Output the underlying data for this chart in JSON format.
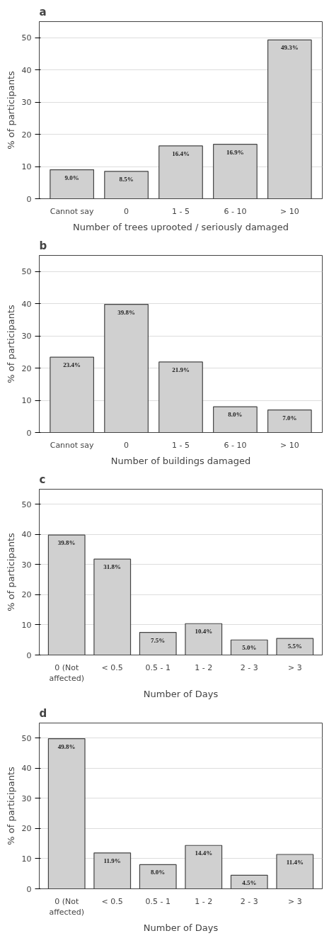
{
  "chart_data": [
    {
      "type": "bar",
      "title": "a",
      "xlabel": "Number of trees uprooted / seriously damaged",
      "ylabel": "% of participants",
      "categories": [
        "Cannot say",
        "0",
        "1 - 5",
        "6 - 10",
        "> 10"
      ],
      "values": [
        9.0,
        8.5,
        16.4,
        16.9,
        49.3
      ],
      "value_labels": [
        "9.0%",
        "8.5%",
        "16.4%",
        "16.9%",
        "49.3%"
      ],
      "color": "#d0d0d0",
      "ylim": [
        0,
        55
      ],
      "yticks": [
        0,
        10,
        20,
        30,
        40,
        50
      ],
      "grid": "y"
    },
    {
      "type": "bar",
      "title": "b",
      "xlabel": "Number of buildings damaged",
      "ylabel": "% of participants",
      "categories": [
        "Cannot say",
        "0",
        "1 - 5",
        "6 - 10",
        "> 10"
      ],
      "values": [
        23.4,
        39.8,
        21.9,
        8.0,
        7.0
      ],
      "value_labels": [
        "23.4%",
        "39.8%",
        "21.9%",
        "8.0%",
        "7.0%"
      ],
      "color": "#d0d0d0",
      "ylim": [
        0,
        55
      ],
      "yticks": [
        0,
        10,
        20,
        30,
        40,
        50
      ],
      "grid": "y"
    },
    {
      "type": "bar",
      "title": "c",
      "xlabel": "Number of Days",
      "ylabel": "% of participants",
      "categories": [
        "0 (Not\naffected)",
        "< 0.5",
        "0.5 - 1",
        "1 - 2",
        "2 - 3",
        "> 3"
      ],
      "values": [
        39.8,
        31.8,
        7.5,
        10.4,
        5.0,
        5.5
      ],
      "value_labels": [
        "39.8%",
        "31.8%",
        "7.5%",
        "10.4%",
        "5.0%",
        "5.5%"
      ],
      "color": "#d0d0d0",
      "ylim": [
        0,
        55
      ],
      "yticks": [
        0,
        10,
        20,
        30,
        40,
        50
      ],
      "grid": "y"
    },
    {
      "type": "bar",
      "title": "d",
      "xlabel": "Number of Days",
      "ylabel": "% of participants",
      "categories": [
        "0 (Not\naffected)",
        "< 0.5",
        "0.5 - 1",
        "1 - 2",
        "2 - 3",
        "> 3"
      ],
      "values": [
        49.8,
        11.9,
        8.0,
        14.4,
        4.5,
        11.4
      ],
      "value_labels": [
        "49.8%",
        "11.9%",
        "8.0%",
        "14.4%",
        "4.5%",
        "11.4%"
      ],
      "color": "#d0d0d0",
      "ylim": [
        0,
        55
      ],
      "yticks": [
        0,
        10,
        20,
        30,
        40,
        50
      ],
      "grid": "y"
    }
  ]
}
